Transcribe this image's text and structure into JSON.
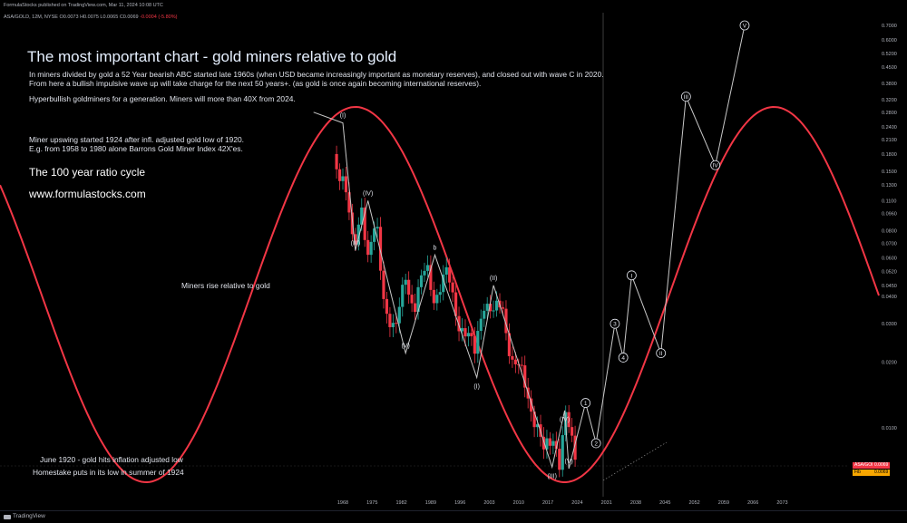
{
  "header": {
    "published_line": "FormulaStocks published on TradingView.com, Mar 11, 2024 10:08 UTC",
    "symbol_line": "ASA/GOLD, 12M, NYSE",
    "ohlc": "O0.0073 H0.0075 L0.0065 C0.0069",
    "change": "-0.0004 (-5.80%)"
  },
  "annotations": {
    "title": "The most important chart  - gold miners relative to gold",
    "para1_line1": "In miners divided by gold a 52 Year bearish ABC started late 1960s (when USD became increasingly important as monetary reserves), and closed out with wave C  in 2020.",
    "para1_line2": "From here a bullish impulsive wave up will take charge for the next 50 years+. (as gold is once again becoming international reserves).",
    "para2": "Hyperbullish goldminers for a generation. Miners will more than 40X from 2024.",
    "para3_line1": "Miner upswing started 1924 after  infl. adjusted gold low of 1920.",
    "para3_line2": "E.g. from 1958 to 1980 alone Barrons Gold Miner Index 42X'es.",
    "cycle": "The 100 year ratio cycle",
    "website": "www.formulastocks.com",
    "miners_rise": "Miners rise relative to gold",
    "june1920": "June 1920 - gold hits inflation adjusted low",
    "homestake": "Homestake puts in its low in summer of 1924"
  },
  "badges": {
    "symbol": "ASA/GOLD",
    "value": "0.0069",
    "alt_label": "Fib",
    "alt_value": "0.0069"
  },
  "footer": {
    "brand": "TradingView"
  },
  "colors": {
    "up": "#26a69a",
    "down": "#f23645",
    "cycle": "#f23645",
    "wave": "#c8c8c8",
    "background": "#000000"
  },
  "chart_data": {
    "type": "candlestick",
    "scale": "log",
    "x_ticks": [
      "1968",
      "1975",
      "1982",
      "1989",
      "1996",
      "2003",
      "2010",
      "2017",
      "2024",
      "2031",
      "2038",
      "2045",
      "2052",
      "2059",
      "2066",
      "2073"
    ],
    "y_ticks": [
      "0.7000",
      "0.6000",
      "0.5200",
      "0.4500",
      "0.3800",
      "0.3200",
      "0.2800",
      "0.2400",
      "0.2100",
      "0.1800",
      "0.1500",
      "0.1300",
      "0.1100",
      "0.0960",
      "0.0800",
      "0.0700",
      "0.0600",
      "0.0520",
      "0.0450",
      "0.0400",
      "0.0300",
      "0.0200",
      "0.0100"
    ],
    "price_anchors": [
      {
        "year": 1966.0,
        "value": 0.18
      },
      {
        "year": 1968.5,
        "value": 0.125
      },
      {
        "year": 1970.5,
        "value": 0.065
      },
      {
        "year": 1972.5,
        "value": 0.11
      },
      {
        "year": 1974.0,
        "value": 0.058
      },
      {
        "year": 1976.0,
        "value": 0.085
      },
      {
        "year": 1978.0,
        "value": 0.038
      },
      {
        "year": 1980.5,
        "value": 0.026
      },
      {
        "year": 1983.0,
        "value": 0.052
      },
      {
        "year": 1985.0,
        "value": 0.035
      },
      {
        "year": 1988.0,
        "value": 0.055
      },
      {
        "year": 1990.0,
        "value": 0.04
      },
      {
        "year": 1993.0,
        "value": 0.05
      },
      {
        "year": 1996.0,
        "value": 0.03
      },
      {
        "year": 1999.5,
        "value": 0.022
      },
      {
        "year": 2001.5,
        "value": 0.04
      },
      {
        "year": 2004.0,
        "value": 0.032
      },
      {
        "year": 2006.0,
        "value": 0.038
      },
      {
        "year": 2008.5,
        "value": 0.02
      },
      {
        "year": 2011.0,
        "value": 0.017
      },
      {
        "year": 2014.0,
        "value": 0.011
      },
      {
        "year": 2016.0,
        "value": 0.0075
      },
      {
        "year": 2018.5,
        "value": 0.0095
      },
      {
        "year": 2020.0,
        "value": 0.0068
      },
      {
        "year": 2021.0,
        "value": 0.0115
      },
      {
        "year": 2023.0,
        "value": 0.008
      },
      {
        "year": 2024.2,
        "value": 0.0069
      }
    ],
    "wave_path": [
      {
        "year": 1961,
        "value": 0.28
      },
      {
        "year": 1968,
        "value": 0.25,
        "label": "(I)"
      },
      {
        "year": 1971,
        "value": 0.065,
        "label": "(III)"
      },
      {
        "year": 1974,
        "value": 0.11,
        "label": "(IV)"
      },
      {
        "year": 1983,
        "value": 0.022,
        "label": "(V)"
      },
      {
        "year": 1990,
        "value": 0.062,
        "label": "b"
      },
      {
        "year": 2000,
        "value": 0.017,
        "label": "(I)"
      },
      {
        "year": 2004,
        "value": 0.045,
        "label": "(II)"
      },
      {
        "year": 2018,
        "value": 0.0066,
        "label": "(III)"
      },
      {
        "year": 2021,
        "value": 0.012,
        "label": "(IV)"
      },
      {
        "year": 2022,
        "value": 0.0065,
        "label": "(V)"
      }
    ],
    "projection_path": [
      {
        "year": 2022,
        "value": 0.0065
      },
      {
        "year": 2026,
        "value": 0.013,
        "label": "1"
      },
      {
        "year": 2028.5,
        "value": 0.0085,
        "label": "2"
      },
      {
        "year": 2033,
        "value": 0.03,
        "label": "3"
      },
      {
        "year": 2035,
        "value": 0.021,
        "label": "4"
      },
      {
        "year": 2037,
        "value": 0.05,
        "label": "I"
      },
      {
        "year": 2044,
        "value": 0.022,
        "label": "II"
      },
      {
        "year": 2050,
        "value": 0.33,
        "label": "III"
      },
      {
        "year": 2057,
        "value": 0.16,
        "label": "IV"
      },
      {
        "year": 2064,
        "value": 0.7,
        "label": "V"
      }
    ]
  }
}
